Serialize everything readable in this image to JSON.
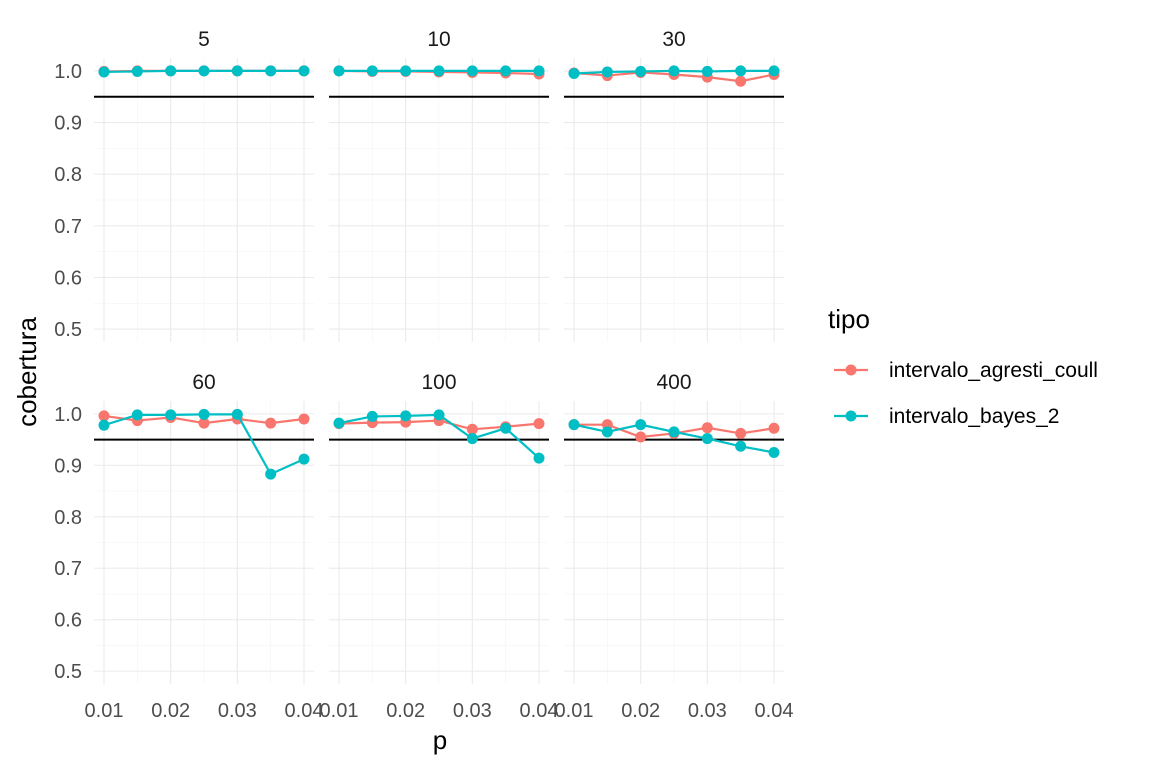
{
  "chart_data": {
    "type": "line",
    "facet_variable": "n",
    "facets": [
      {
        "label": "5",
        "series": [
          {
            "name": "intervalo_agresti_coull",
            "x": [
              0.01,
              0.015,
              0.02,
              0.025,
              0.03,
              0.035,
              0.04
            ],
            "y": [
              0.999,
              1.0,
              1.0,
              1.0,
              1.0,
              1.0,
              1.0
            ]
          },
          {
            "name": "intervalo_bayes_2",
            "x": [
              0.01,
              0.015,
              0.02,
              0.025,
              0.03,
              0.035,
              0.04
            ],
            "y": [
              0.998,
              0.999,
              1.0,
              1.0,
              1.0,
              1.0,
              1.0
            ]
          }
        ]
      },
      {
        "label": "10",
        "series": [
          {
            "name": "intervalo_agresti_coull",
            "x": [
              0.01,
              0.015,
              0.02,
              0.025,
              0.03,
              0.035,
              0.04
            ],
            "y": [
              1.0,
              0.999,
              0.999,
              0.998,
              0.997,
              0.996,
              0.994
            ]
          },
          {
            "name": "intervalo_bayes_2",
            "x": [
              0.01,
              0.015,
              0.02,
              0.025,
              0.03,
              0.035,
              0.04
            ],
            "y": [
              1.0,
              1.0,
              1.0,
              1.0,
              1.0,
              1.0,
              1.0
            ]
          }
        ]
      },
      {
        "label": "30",
        "series": [
          {
            "name": "intervalo_agresti_coull",
            "x": [
              0.01,
              0.015,
              0.02,
              0.025,
              0.03,
              0.035,
              0.04
            ],
            "y": [
              0.996,
              0.991,
              0.997,
              0.993,
              0.988,
              0.98,
              0.993
            ]
          },
          {
            "name": "intervalo_bayes_2",
            "x": [
              0.01,
              0.015,
              0.02,
              0.025,
              0.03,
              0.035,
              0.04
            ],
            "y": [
              0.995,
              0.998,
              0.999,
              1.0,
              0.999,
              1.0,
              1.0
            ]
          }
        ]
      },
      {
        "label": "60",
        "series": [
          {
            "name": "intervalo_agresti_coull",
            "x": [
              0.01,
              0.015,
              0.02,
              0.025,
              0.03,
              0.035,
              0.04
            ],
            "y": [
              0.996,
              0.987,
              0.993,
              0.982,
              0.99,
              0.982,
              0.99
            ]
          },
          {
            "name": "intervalo_bayes_2",
            "x": [
              0.01,
              0.015,
              0.02,
              0.025,
              0.03,
              0.035,
              0.04
            ],
            "y": [
              0.978,
              0.998,
              0.998,
              0.999,
              0.999,
              0.883,
              0.912
            ]
          }
        ]
      },
      {
        "label": "100",
        "series": [
          {
            "name": "intervalo_agresti_coull",
            "x": [
              0.01,
              0.015,
              0.02,
              0.025,
              0.03,
              0.035,
              0.04
            ],
            "y": [
              0.981,
              0.983,
              0.984,
              0.987,
              0.97,
              0.975,
              0.981
            ]
          },
          {
            "name": "intervalo_bayes_2",
            "x": [
              0.01,
              0.015,
              0.02,
              0.025,
              0.03,
              0.035,
              0.04
            ],
            "y": [
              0.982,
              0.995,
              0.996,
              0.998,
              0.952,
              0.972,
              0.914
            ]
          }
        ]
      },
      {
        "label": "400",
        "series": [
          {
            "name": "intervalo_agresti_coull",
            "x": [
              0.01,
              0.015,
              0.02,
              0.025,
              0.03,
              0.035,
              0.04
            ],
            "y": [
              0.979,
              0.979,
              0.955,
              0.962,
              0.973,
              0.962,
              0.972
            ]
          },
          {
            "name": "intervalo_bayes_2",
            "x": [
              0.01,
              0.015,
              0.02,
              0.025,
              0.03,
              0.035,
              0.04
            ],
            "y": [
              0.979,
              0.965,
              0.979,
              0.965,
              0.952,
              0.937,
              0.925
            ]
          }
        ]
      }
    ],
    "reference_line_y": 0.95,
    "xlabel": "p",
    "ylabel": "cobertura",
    "x_ticks": [
      0.01,
      0.02,
      0.03,
      0.04
    ],
    "x_tick_labels": [
      "0.01",
      "0.02",
      "0.03",
      "0.04"
    ],
    "xlim": [
      0.0085,
      0.0415
    ],
    "y_ticks": [
      0.5,
      0.6,
      0.7,
      0.8,
      0.9,
      1.0
    ],
    "y_tick_labels": [
      "0.5",
      "0.6",
      "0.7",
      "0.8",
      "0.9",
      "1.0"
    ],
    "ylim": [
      0.475,
      1.025
    ],
    "grid": true,
    "legend": {
      "title": "tipo",
      "placement": "right",
      "entries": [
        {
          "name": "intervalo_agresti_coull",
          "color": "#F8766D"
        },
        {
          "name": "intervalo_bayes_2",
          "color": "#00BFC4"
        }
      ]
    }
  }
}
